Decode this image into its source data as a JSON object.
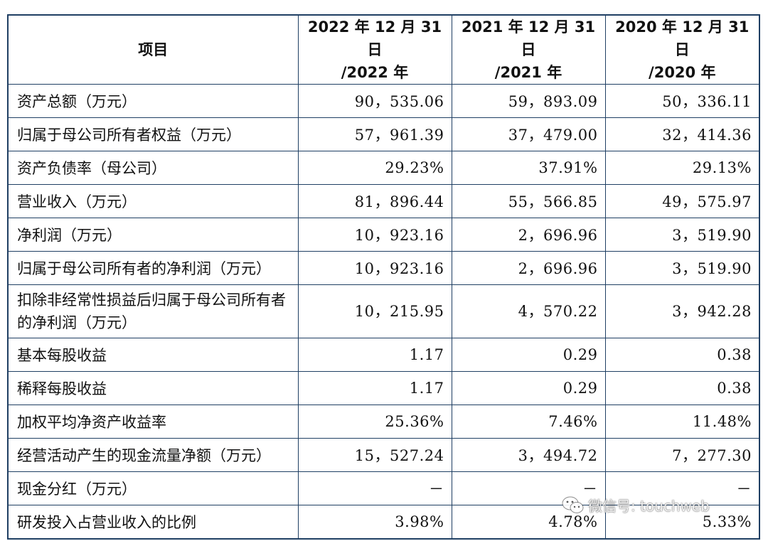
{
  "table": {
    "headers": {
      "item": "项目",
      "col1_line1": "2022 年 12 月 31 日",
      "col1_line2": "/2022 年",
      "col2_line1": "2021 年 12 月 31 日",
      "col2_line2": "/2021 年",
      "col3_line1": "2020 年 12 月 31 日",
      "col3_line2": "/2020 年"
    },
    "rows": [
      {
        "label": "资产总额（万元）",
        "v2022": "90，535.06",
        "v2021": "59，893.09",
        "v2020": "50，336.11"
      },
      {
        "label": "归属于母公司所有者权益（万元）",
        "v2022": "57，961.39",
        "v2021": "37，479.00",
        "v2020": "32，414.36"
      },
      {
        "label": "资产负债率（母公司）",
        "v2022": "29.23%",
        "v2021": "37.91%",
        "v2020": "29.13%"
      },
      {
        "label": "营业收入（万元）",
        "v2022": "81，896.44",
        "v2021": "55，566.85",
        "v2020": "49，575.97"
      },
      {
        "label": "净利润（万元）",
        "v2022": "10，923.16",
        "v2021": "2，696.96",
        "v2020": "3，519.90"
      },
      {
        "label": "归属于母公司所有者的净利润（万元）",
        "v2022": "10，923.16",
        "v2021": "2，696.96",
        "v2020": "3，519.90"
      },
      {
        "label": "扣除非经常性损益后归属于母公司所有者的净利润（万元）",
        "v2022": "10，215.95",
        "v2021": "4，570.22",
        "v2020": "3，942.28"
      },
      {
        "label": "基本每股收益",
        "v2022": "1.17",
        "v2021": "0.29",
        "v2020": "0.38"
      },
      {
        "label": "稀释每股收益",
        "v2022": "1.17",
        "v2021": "0.29",
        "v2020": "0.38"
      },
      {
        "label": "加权平均净资产收益率",
        "v2022": "25.36%",
        "v2021": "7.46%",
        "v2020": "11.48%"
      },
      {
        "label": "经营活动产生的现金流量净额（万元）",
        "v2022": "15，527.24",
        "v2021": "3，494.72",
        "v2020": "7，277.30"
      },
      {
        "label": "现金分红（万元）",
        "v2022": "－",
        "v2021": "－",
        "v2020": "－"
      },
      {
        "label": "研发投入占营业收入的比例",
        "v2022": "3.98%",
        "v2021": "4.78%",
        "v2020": "5.33%"
      }
    ]
  },
  "watermark": {
    "icon": "wechat-icon",
    "text": "微信号: touchweb"
  }
}
